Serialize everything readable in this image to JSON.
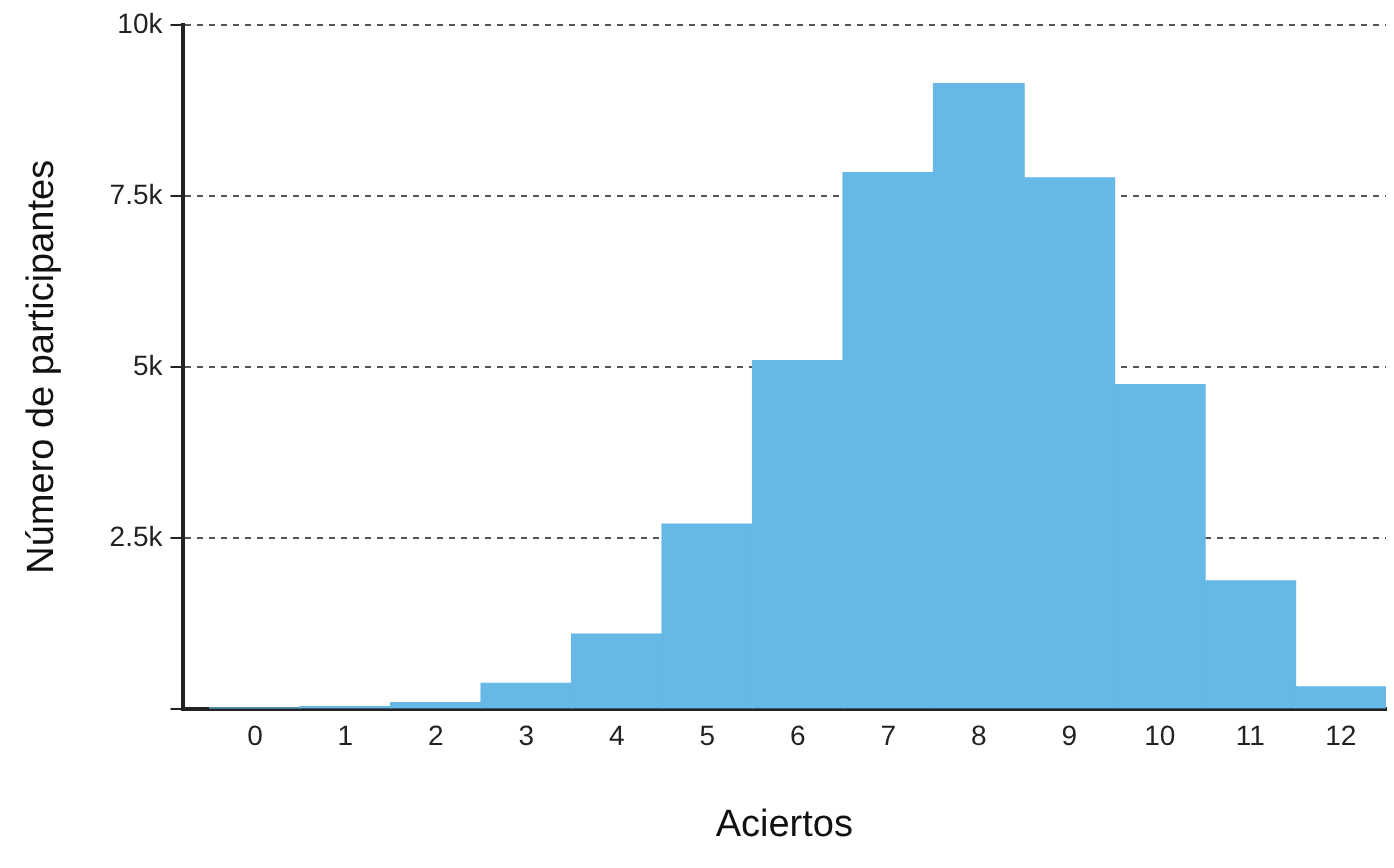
{
  "chart_data": {
    "type": "histogram",
    "xlabel": "Aciertos",
    "ylabel": "Número de participantes",
    "bins": [
      -0.5,
      0.5,
      1.5,
      2.5,
      3.5,
      4.5,
      5.5,
      6.5,
      7.5,
      8.5,
      9.5,
      10.5,
      11.5,
      12.5
    ],
    "values": [
      10,
      30,
      90,
      370,
      1090,
      2700,
      5090,
      7840,
      9140,
      7760,
      4740,
      1870,
      320
    ],
    "color": "#66b8e6",
    "xlim": [
      -0.8,
      12.5
    ],
    "xticks": [
      0,
      1,
      2,
      3,
      4,
      5,
      6,
      7,
      8,
      9,
      10,
      11,
      12
    ],
    "ylim": [
      0,
      10000
    ],
    "yticks": [
      {
        "value": 0,
        "label": null
      },
      {
        "value": 2500,
        "label": "2.5k"
      },
      {
        "value": 5000,
        "label": "5k"
      },
      {
        "value": 7500,
        "label": "7.5k"
      },
      {
        "value": 10000,
        "label": "10k"
      }
    ],
    "grid": "y",
    "legend": false
  }
}
